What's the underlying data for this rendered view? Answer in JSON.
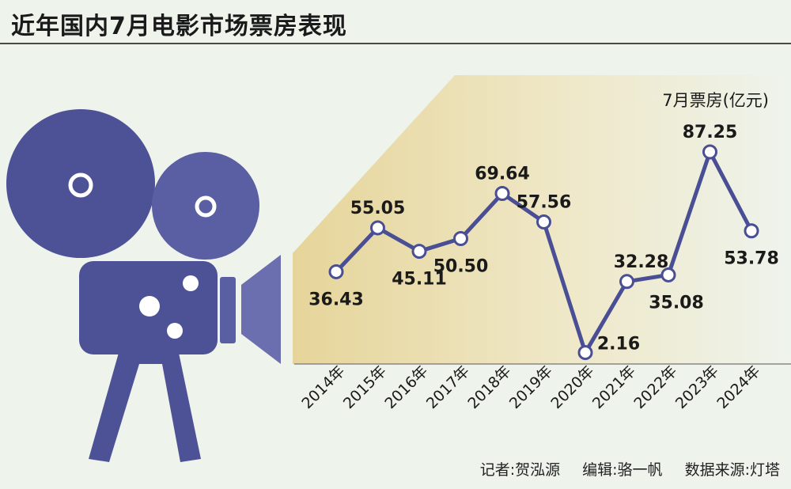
{
  "title": "近年国内7月电影市场票房表现",
  "credits": {
    "reporter": "记者:贺泓源",
    "editor": "编辑:骆一帆",
    "source": "数据来源:灯塔"
  },
  "colors": {
    "line": "#4a4e94",
    "camera_dark": "#4d5196",
    "camera_light": "#6b6fb0",
    "beam_start": "#e8d9a2",
    "beam_end": "#eef3ec",
    "background": "#eef3ec"
  },
  "chart_data": {
    "type": "line",
    "ylabel": "7月票房(亿元)",
    "categories": [
      "2014年",
      "2015年",
      "2016年",
      "2017年",
      "2018年",
      "2019年",
      "2020年",
      "2021年",
      "2022年",
      "2023年",
      "2024年"
    ],
    "series": [
      {
        "values": [
          36.43,
          55.05,
          45.11,
          50.5,
          69.64,
          57.56,
          2.16,
          32.28,
          35.08,
          87.25,
          53.78
        ]
      }
    ],
    "value_labels": [
      "36.43",
      "55.05",
      "45.11",
      "50.50",
      "69.64",
      "57.56",
      "2.16",
      "32.28",
      "35.08",
      "87.25",
      "53.78"
    ],
    "ylim": [
      0,
      100
    ],
    "grid": false
  }
}
